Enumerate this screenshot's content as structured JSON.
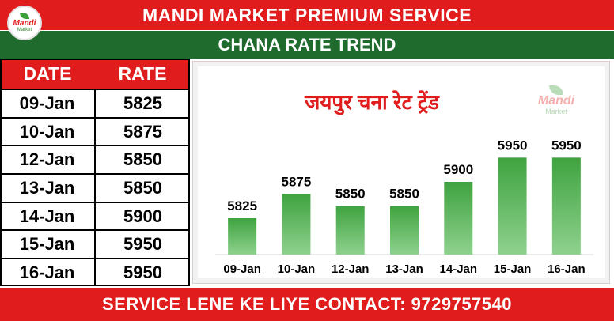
{
  "header": {
    "title": "MANDI MARKET PREMIUM SERVICE",
    "subtitle": "CHANA RATE TREND"
  },
  "logo": {
    "line1": "Mandi",
    "line2": "Market"
  },
  "table": {
    "headers": [
      "DATE",
      "RATE"
    ],
    "rows": [
      {
        "date": "09-Jan",
        "rate": "5825"
      },
      {
        "date": "10-Jan",
        "rate": "5875"
      },
      {
        "date": "12-Jan",
        "rate": "5850"
      },
      {
        "date": "13-Jan",
        "rate": "5850"
      },
      {
        "date": "14-Jan",
        "rate": "5900"
      },
      {
        "date": "15-Jan",
        "rate": "5950"
      },
      {
        "date": "16-Jan",
        "rate": "5950"
      }
    ]
  },
  "chart_data": {
    "type": "bar",
    "title": "जयपुर चना रेट ट्रेंड",
    "categories": [
      "09-Jan",
      "10-Jan",
      "12-Jan",
      "13-Jan",
      "14-Jan",
      "15-Jan",
      "16-Jan"
    ],
    "values": [
      5825,
      5875,
      5850,
      5850,
      5900,
      5950,
      5950
    ],
    "ylim": [
      5750,
      5975
    ],
    "grid": false,
    "bar_color": "#3fa33f",
    "data_labels": true
  },
  "footer": {
    "contact": "SERVICE LENE KE LIYE CONTACT: 9729757540"
  },
  "colors": {
    "red": "#e01c1c",
    "green": "#1e6b2d",
    "bar": "#3fa33f"
  }
}
